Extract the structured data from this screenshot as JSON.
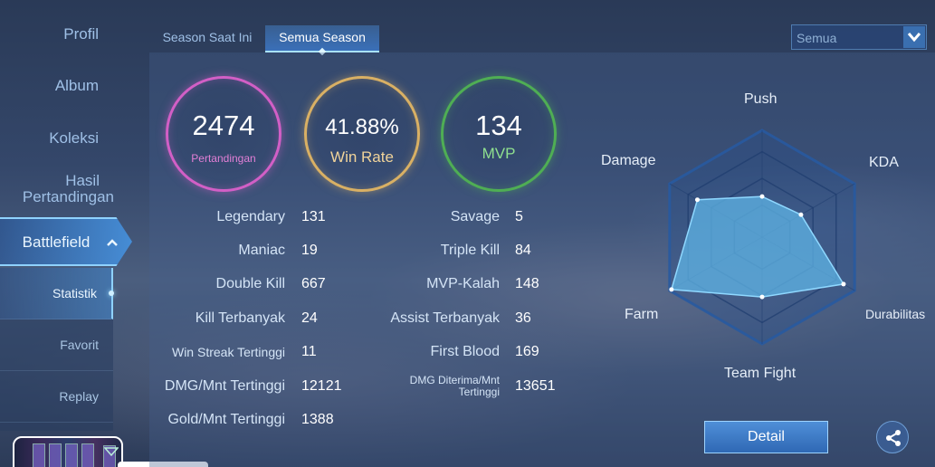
{
  "sidebar": {
    "items": [
      {
        "label": "Profil"
      },
      {
        "label": "Album"
      },
      {
        "label": "Koleksi"
      },
      {
        "label_line1": "Hasil",
        "label_line2": "Pertandingan"
      }
    ],
    "active": {
      "label": "Battlefield",
      "icon": "chevron-up-icon"
    },
    "subitems": [
      {
        "label": "Statistik"
      },
      {
        "label": "Favorit"
      },
      {
        "label": "Replay"
      }
    ]
  },
  "tabs": [
    {
      "label": "Season Saat Ini"
    },
    {
      "label": "Semua Season"
    }
  ],
  "season_dropdown": {
    "value": "Semua",
    "icon": "chevron-down-icon"
  },
  "summary": {
    "matches": {
      "value": "2474",
      "label": "Pertandingan",
      "color": "#d25fc6"
    },
    "win_rate": {
      "value": "41.88%",
      "label": "Win Rate",
      "color": "#d9b064"
    },
    "mvp": {
      "value": "134",
      "label": "MVP",
      "color": "#4fae54"
    }
  },
  "stats_left": [
    {
      "label": "Legendary",
      "value": "131"
    },
    {
      "label": "Maniac",
      "value": "19"
    },
    {
      "label": "Double Kill",
      "value": "667"
    },
    {
      "label": "Kill Terbanyak",
      "value": "24"
    },
    {
      "label": "Win Streak Tertinggi",
      "value": "11"
    },
    {
      "label": "DMG/Mnt Tertinggi",
      "value": "12121"
    },
    {
      "label": "Gold/Mnt Tertinggi",
      "value": "1388"
    }
  ],
  "stats_right": [
    {
      "label": "Savage",
      "value": "5"
    },
    {
      "label": "Triple Kill",
      "value": "84"
    },
    {
      "label": "MVP-Kalah",
      "value": "148"
    },
    {
      "label": "Assist Terbanyak",
      "value": "36"
    },
    {
      "label": "First Blood",
      "value": "169"
    },
    {
      "label_line1": "DMG Diterima/Mnt",
      "label_line2": "Tertinggi",
      "value": "13651"
    }
  ],
  "radar": {
    "axes": [
      "Push",
      "KDA",
      "Durabilitas",
      "Team Fight",
      "Farm",
      "Damage"
    ],
    "levels": [
      0.38,
      0.42,
      0.88,
      0.56,
      0.98,
      0.7
    ],
    "fill_color": "#5fb4e6"
  },
  "buttons": {
    "detail": "Detail",
    "share_icon": "share-icon"
  }
}
